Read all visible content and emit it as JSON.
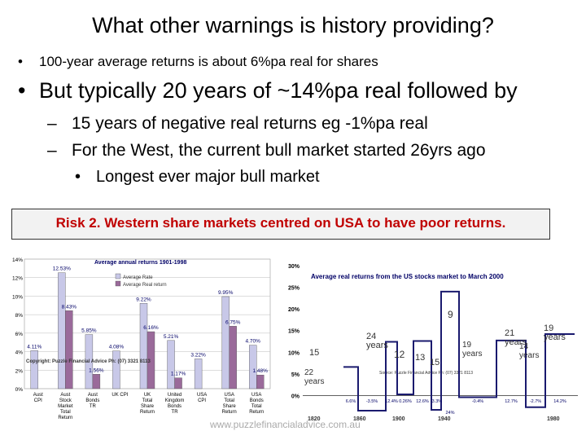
{
  "slide": {
    "title": "What other warnings is history providing?",
    "bullet1": "100-year average returns is about 6%pa real for shares",
    "bullet2": "But typically 20 years of ~14%pa real followed by",
    "sub1": "15 years of negative real returns eg -1%pa real",
    "sub2": "For the West, the current bull market started 26yrs ago",
    "subsub1": "Longest ever major bull market",
    "risk": "Risk 2. Western share markets centred on USA to have poor returns.",
    "footer": "www.puzzlefinancialadvice.com.au",
    "bullet_glyph": "•",
    "dash_glyph": "–"
  },
  "chart_data": [
    {
      "type": "bar",
      "title": "Average annual returns 1901-1998",
      "copyright": "Copyright: Puzzle Financial Advice Ph: (07) 3321 8113",
      "categories": [
        "Aust CPI",
        "Aust Stock Market Total Return",
        "Aust Bonds TR",
        "UK CPI",
        "UK Total Share Return",
        "United Kingdom Bonds TR",
        "USA CPI",
        "USA Total Share Return",
        "USA Bonds Total Return"
      ],
      "ytick_labels": [
        "0%",
        "2%",
        "4%",
        "6%",
        "8%",
        "10%",
        "12%",
        "14%"
      ],
      "ylim": [
        0,
        14
      ],
      "series": [
        {
          "name": "Average Rate",
          "color": "#c8c8e8",
          "values": [
            4.11,
            12.53,
            5.85,
            4.08,
            9.22,
            5.21,
            3.22,
            9.95,
            4.7
          ],
          "labels": [
            "4.11%",
            "12.53%",
            "5.85%",
            "4.08%",
            "9.22%",
            "5.21%",
            "3.22%",
            "9.95%",
            "4.70%"
          ]
        },
        {
          "name": "Average Real return",
          "color": "#9a6a9a",
          "values": [
            0,
            8.43,
            1.56,
            0,
            6.16,
            1.17,
            0,
            6.75,
            1.48
          ],
          "labels": [
            "",
            "8.43%",
            "1.56%",
            "",
            "6.16%",
            "1.17%",
            "",
            "6.75%",
            "1.48%"
          ]
        }
      ]
    },
    {
      "type": "bar",
      "title": "Average real returns from the US stocks market to March 2000",
      "source": "Source: Puzzle Financial Advice Ph: (07) 3321 8113",
      "ytick_labels": [
        "0%",
        "5%",
        "10%",
        "15%",
        "20%",
        "25%",
        "30%"
      ],
      "ylim": [
        -5,
        30
      ],
      "xtick_labels": [
        "1820",
        "1860",
        "1900",
        "1940",
        "1980"
      ],
      "periods": [
        {
          "years": "15",
          "value": 6.6,
          "label": "6.6%"
        },
        {
          "years": "22 years",
          "value": -3.5,
          "label": "-3.5%"
        },
        {
          "years": "24 years",
          "value": 12.4,
          "label": "12.4%"
        },
        {
          "years": "12",
          "value": 0.26,
          "label": "0.26%"
        },
        {
          "years": "13",
          "value": 12.6,
          "label": "12.6%"
        },
        {
          "years": "15",
          "value": -3.3,
          "label": "-3.3%"
        },
        {
          "years": "9",
          "value": 24,
          "label": "24%"
        },
        {
          "years": "19 years",
          "value": -0.4,
          "label": "-0.4%"
        },
        {
          "years": "21 years",
          "value": 12.7,
          "label": "12.7%"
        },
        {
          "years": "14 years",
          "value": -2.7,
          "label": "-2.7%"
        },
        {
          "years": "19 years",
          "value": 14.2,
          "label": "14.2%"
        }
      ]
    }
  ]
}
